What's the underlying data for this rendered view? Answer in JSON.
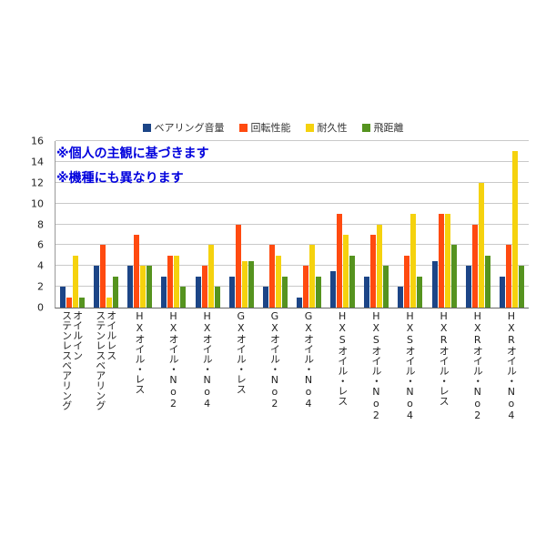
{
  "annotations": [
    "※個人の主観に基づきます",
    "※機種にも異なります"
  ],
  "annotation_color": "#0000dd",
  "chart_data": {
    "type": "bar",
    "title": "",
    "xlabel": "",
    "ylabel": "",
    "ylim": [
      0,
      16
    ],
    "ytick": 2,
    "grid": true,
    "legend_position": "top",
    "colors": [
      "#1c4587",
      "#ff4a10",
      "#f5d20e",
      "#55931f"
    ],
    "categories": [
      "オイルイン\nステンレスベアリング",
      "オイルレス\nステンレスベアリング",
      "HXオイル・レス",
      "HXオイル・No2",
      "HXオイル・No4",
      "GXオイル・レス",
      "GXオイル・No2",
      "GXオイル・No4",
      "HXSオイル・レス",
      "HXSオイル・No2",
      "HXSオイル・No4",
      "HXRオイル・レス",
      "HXRオイル・No2",
      "HXRオイル・No4"
    ],
    "series": [
      {
        "name": "ベアリング音量",
        "values": [
          2,
          4,
          4,
          3,
          3,
          3,
          2,
          1,
          3.5,
          3,
          2,
          4.5,
          4,
          3
        ]
      },
      {
        "name": "回転性能",
        "values": [
          1,
          6,
          7,
          5,
          4,
          8,
          6,
          4,
          9,
          7,
          5,
          9,
          8,
          6
        ]
      },
      {
        "name": "耐久性",
        "values": [
          5,
          1,
          4,
          5,
          6,
          4.5,
          5,
          6,
          7,
          8,
          9,
          9,
          12,
          15
        ]
      },
      {
        "name": "飛距離",
        "values": [
          1,
          3,
          4,
          2,
          2,
          4.5,
          3,
          3,
          5,
          4,
          3,
          6,
          5,
          4
        ]
      }
    ]
  }
}
